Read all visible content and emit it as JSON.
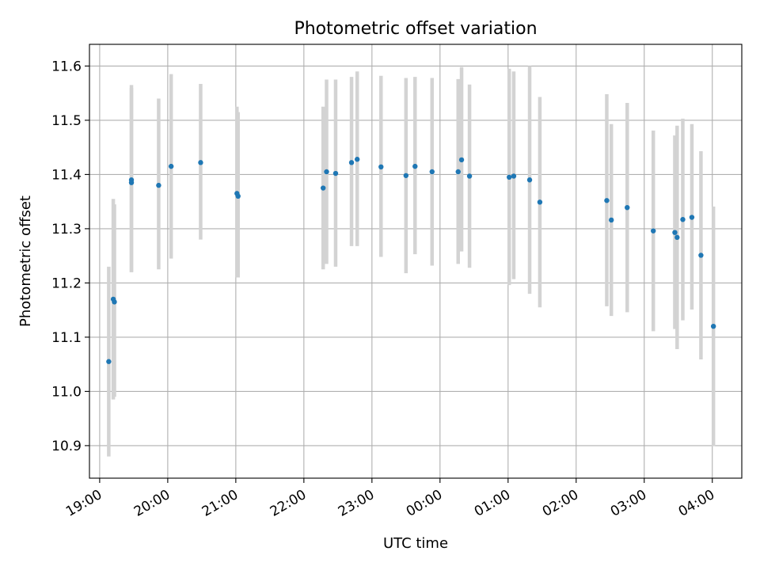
{
  "chart_data": {
    "type": "scatter",
    "title": "Photometric offset variation",
    "xlabel": "UTC time",
    "ylabel": "Photometric offset",
    "grid": true,
    "legend": "none",
    "colors": {
      "point": "#1f77b4",
      "errorbar": "#d3d3d3",
      "grid": "#b0b0b0",
      "axis": "#000000"
    },
    "x_ticks": [
      "19:00",
      "20:00",
      "21:00",
      "22:00",
      "23:00",
      "00:00",
      "01:00",
      "02:00",
      "03:00",
      "04:00"
    ],
    "y_ticks": [
      "10.9",
      "11.0",
      "11.1",
      "11.2",
      "11.3",
      "11.4",
      "11.5",
      "11.6"
    ],
    "xlim": [
      "18:51",
      "04:26"
    ],
    "ylim": [
      10.84,
      11.64
    ],
    "points": [
      {
        "x": "19:08",
        "y": 11.055,
        "ylow": 10.88,
        "yhigh": 11.23
      },
      {
        "x": "19:12",
        "y": 11.17,
        "ylow": 10.985,
        "yhigh": 11.355
      },
      {
        "x": "19:13",
        "y": 11.165,
        "ylow": 10.99,
        "yhigh": 11.345
      },
      {
        "x": "19:28",
        "y": 11.39,
        "ylow": 11.22,
        "yhigh": 11.565
      },
      {
        "x": "19:28",
        "y": 11.385,
        "ylow": 11.22,
        "yhigh": 11.56
      },
      {
        "x": "19:52",
        "y": 11.38,
        "ylow": 11.225,
        "yhigh": 11.54
      },
      {
        "x": "20:03",
        "y": 11.415,
        "ylow": 11.245,
        "yhigh": 11.585
      },
      {
        "x": "20:29",
        "y": 11.422,
        "ylow": 11.28,
        "yhigh": 11.567
      },
      {
        "x": "21:01",
        "y": 11.365,
        "ylow": 11.21,
        "yhigh": 11.525
      },
      {
        "x": "21:02",
        "y": 11.36,
        "ylow": 11.21,
        "yhigh": 11.515
      },
      {
        "x": "22:17",
        "y": 11.375,
        "ylow": 11.225,
        "yhigh": 11.525
      },
      {
        "x": "22:20",
        "y": 11.405,
        "ylow": 11.235,
        "yhigh": 11.575
      },
      {
        "x": "22:28",
        "y": 11.402,
        "ylow": 11.23,
        "yhigh": 11.575
      },
      {
        "x": "22:42",
        "y": 11.422,
        "ylow": 11.268,
        "yhigh": 11.58
      },
      {
        "x": "22:47",
        "y": 11.428,
        "ylow": 11.268,
        "yhigh": 11.59
      },
      {
        "x": "23:08",
        "y": 11.414,
        "ylow": 11.248,
        "yhigh": 11.582
      },
      {
        "x": "23:30",
        "y": 11.398,
        "ylow": 11.218,
        "yhigh": 11.578
      },
      {
        "x": "23:38",
        "y": 11.415,
        "ylow": 11.253,
        "yhigh": 11.58
      },
      {
        "x": "23:53",
        "y": 11.405,
        "ylow": 11.232,
        "yhigh": 11.578
      },
      {
        "x": "00:16",
        "y": 11.405,
        "ylow": 11.235,
        "yhigh": 11.576
      },
      {
        "x": "00:19",
        "y": 11.427,
        "ylow": 11.258,
        "yhigh": 11.598
      },
      {
        "x": "00:26",
        "y": 11.397,
        "ylow": 11.228,
        "yhigh": 11.566
      },
      {
        "x": "01:01",
        "y": 11.395,
        "ylow": 11.196,
        "yhigh": 11.595
      },
      {
        "x": "01:05",
        "y": 11.397,
        "ylow": 11.207,
        "yhigh": 11.59
      },
      {
        "x": "01:19",
        "y": 11.39,
        "ylow": 11.18,
        "yhigh": 11.6
      },
      {
        "x": "01:28",
        "y": 11.349,
        "ylow": 11.155,
        "yhigh": 11.543
      },
      {
        "x": "02:27",
        "y": 11.352,
        "ylow": 11.157,
        "yhigh": 11.548
      },
      {
        "x": "02:31",
        "y": 11.316,
        "ylow": 11.139,
        "yhigh": 11.493
      },
      {
        "x": "02:45",
        "y": 11.339,
        "ylow": 11.146,
        "yhigh": 11.532
      },
      {
        "x": "03:08",
        "y": 11.296,
        "ylow": 11.111,
        "yhigh": 11.481
      },
      {
        "x": "03:27",
        "y": 11.293,
        "ylow": 11.115,
        "yhigh": 11.472
      },
      {
        "x": "03:29",
        "y": 11.284,
        "ylow": 11.078,
        "yhigh": 11.49
      },
      {
        "x": "03:34",
        "y": 11.317,
        "ylow": 11.131,
        "yhigh": 11.503
      },
      {
        "x": "03:42",
        "y": 11.321,
        "ylow": 11.151,
        "yhigh": 11.493
      },
      {
        "x": "03:50",
        "y": 11.251,
        "ylow": 11.059,
        "yhigh": 11.443
      },
      {
        "x": "04:01",
        "y": 11.12,
        "ylow": 10.899,
        "yhigh": 11.341
      }
    ]
  }
}
